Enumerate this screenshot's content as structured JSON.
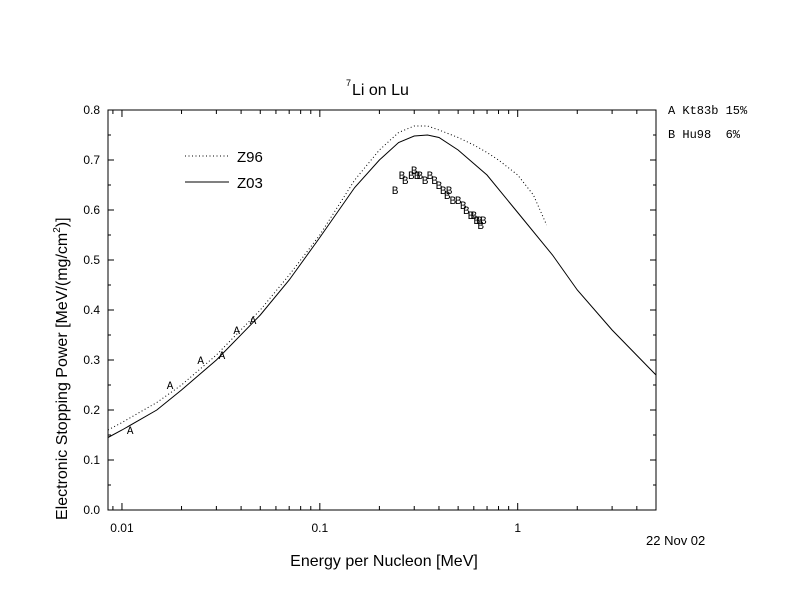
{
  "chart_data": {
    "type": "line",
    "title_sup": "7",
    "title": "Li on Lu",
    "xlabel": "Energy per Nucleon [MeV]",
    "ylabel": "Electronic Stopping Power [MeV/(mg/cm",
    "ylabel_sup": "2",
    "ylabel_end": ")]",
    "x_scale": "log",
    "xlim": [
      0.0085,
      5
    ],
    "ylim": [
      0.0,
      0.8
    ],
    "x_ticks": [
      0.01,
      0.1,
      1
    ],
    "x_tick_labels": [
      "0.01",
      "0.1",
      "1"
    ],
    "y_ticks": [
      0.0,
      0.1,
      0.2,
      0.3,
      0.4,
      0.5,
      0.6,
      0.7,
      0.8
    ],
    "y_tick_labels": [
      "0.0",
      "0.1",
      "0.2",
      "0.3",
      "0.4",
      "0.5",
      "0.6",
      "0.7",
      "0.8"
    ],
    "grid": false,
    "legend_position": "top-left",
    "series": [
      {
        "name": "Z96",
        "style": "dotted",
        "x": [
          0.0085,
          0.01,
          0.015,
          0.02,
          0.03,
          0.05,
          0.07,
          0.1,
          0.15,
          0.2,
          0.25,
          0.3,
          0.35,
          0.4,
          0.5,
          0.6,
          0.7,
          0.8,
          1.0,
          1.2,
          1.4
        ],
        "y": [
          0.16,
          0.175,
          0.215,
          0.25,
          0.31,
          0.4,
          0.47,
          0.55,
          0.66,
          0.72,
          0.755,
          0.768,
          0.768,
          0.76,
          0.745,
          0.73,
          0.715,
          0.7,
          0.67,
          0.63,
          0.57
        ]
      },
      {
        "name": "Z03",
        "style": "solid",
        "x": [
          0.0085,
          0.01,
          0.015,
          0.02,
          0.03,
          0.05,
          0.07,
          0.1,
          0.15,
          0.2,
          0.25,
          0.3,
          0.35,
          0.4,
          0.5,
          0.7,
          1.0,
          1.5,
          2.0,
          3.0,
          5.0
        ],
        "y": [
          0.145,
          0.16,
          0.2,
          0.24,
          0.3,
          0.39,
          0.46,
          0.545,
          0.645,
          0.7,
          0.735,
          0.748,
          0.75,
          0.745,
          0.72,
          0.67,
          0.595,
          0.51,
          0.44,
          0.36,
          0.27
        ]
      }
    ],
    "data_sets": [
      {
        "marker": "A",
        "x": [
          0.011,
          0.0175,
          0.025,
          0.032,
          0.038,
          0.046
        ],
        "y": [
          0.16,
          0.25,
          0.3,
          0.31,
          0.36,
          0.38
        ]
      },
      {
        "marker": "B",
        "x": [
          0.24,
          0.26,
          0.27,
          0.29,
          0.3,
          0.31,
          0.32,
          0.34,
          0.36,
          0.38,
          0.4,
          0.42,
          0.44,
          0.45,
          0.47,
          0.5,
          0.53,
          0.55,
          0.58,
          0.6,
          0.62,
          0.64,
          0.65,
          0.67
        ],
        "y": [
          0.64,
          0.67,
          0.66,
          0.67,
          0.68,
          0.67,
          0.67,
          0.66,
          0.67,
          0.66,
          0.65,
          0.64,
          0.63,
          0.64,
          0.62,
          0.62,
          0.61,
          0.6,
          0.59,
          0.59,
          0.58,
          0.58,
          0.57,
          0.58
        ]
      }
    ],
    "reference_legend": [
      {
        "label": "A Kt83b 15%"
      },
      {
        "label": "B Hu98  6%"
      }
    ],
    "date_stamp": "22 Nov 02"
  }
}
